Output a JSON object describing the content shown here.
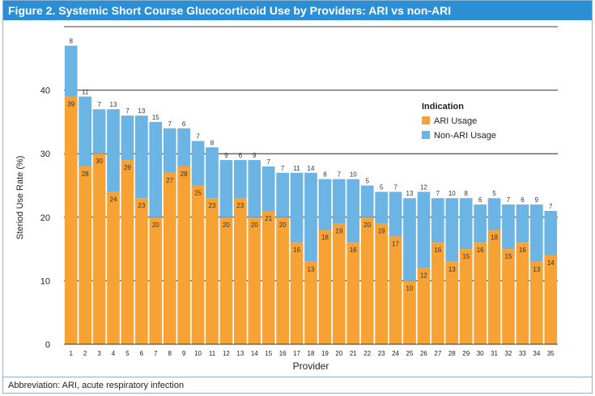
{
  "title": "Figure 2. Systemic Short Course Glucocorticoid Use by Providers: ARI vs non-ARI",
  "footnote": "Abbreviation: ARI, acute respiratory infection",
  "colors": {
    "ari": "#f7a234",
    "non_ari": "#6cb4e4",
    "title_bg": "#2c8fd6",
    "grid": "#000000"
  },
  "chart_data": {
    "type": "bar",
    "stacked": true,
    "xlabel": "Provider",
    "ylabel": "Steriod Use Rate (%)",
    "ylim": [
      0,
      50
    ],
    "yticks": [
      0,
      10,
      20,
      30,
      40
    ],
    "grid": true,
    "legend": {
      "title": "Indication",
      "position": "right",
      "entries": [
        "ARI Usage",
        "Non-ARI Usage"
      ]
    },
    "categories": [
      "1",
      "2",
      "3",
      "4",
      "5",
      "6",
      "7",
      "8",
      "9",
      "10",
      "11",
      "12",
      "13",
      "14",
      "15",
      "16",
      "17",
      "18",
      "19",
      "20",
      "21",
      "22",
      "23",
      "24",
      "25",
      "26",
      "27",
      "28",
      "29",
      "30",
      "31",
      "32",
      "33",
      "34",
      "35"
    ],
    "series": [
      {
        "name": "ARI Usage",
        "values": [
          39,
          28,
          30,
          24,
          29,
          23,
          20,
          27,
          28,
          25,
          23,
          20,
          23,
          20,
          21,
          20,
          16,
          13,
          18,
          19,
          16,
          20,
          19,
          17,
          10,
          12,
          16,
          13,
          15,
          16,
          18,
          15,
          16,
          13,
          14
        ]
      },
      {
        "name": "Non-ARI Usage",
        "values": [
          8,
          11,
          7,
          13,
          7,
          13,
          15,
          7,
          6,
          7,
          8,
          9,
          6,
          9,
          7,
          7,
          11,
          14,
          8,
          7,
          10,
          5,
          5,
          7,
          13,
          12,
          7,
          10,
          8,
          6,
          5,
          7,
          6,
          9,
          7
        ]
      }
    ]
  }
}
